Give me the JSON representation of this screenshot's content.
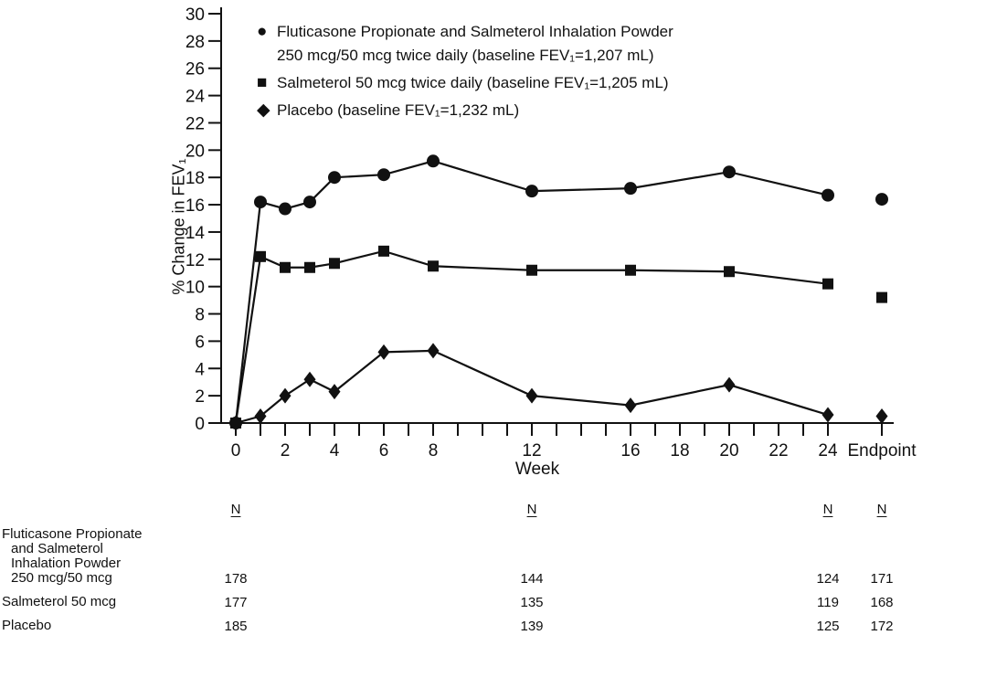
{
  "chart_data": {
    "type": "line",
    "title": "",
    "xlabel": "Week",
    "ylabel": "% Change in FEV₁",
    "ylim": [
      0,
      30
    ],
    "y_ticks": [
      0,
      2,
      4,
      6,
      8,
      10,
      12,
      14,
      16,
      18,
      20,
      22,
      24,
      26,
      28,
      30
    ],
    "x_minor_ticks": [
      0,
      1,
      2,
      3,
      4,
      5,
      6,
      7,
      8,
      9,
      10,
      11,
      12,
      13,
      14,
      15,
      16,
      17,
      18,
      19,
      20,
      21,
      22,
      23,
      24
    ],
    "x_ticks_labeled": [
      0,
      2,
      4,
      6,
      8,
      12,
      16,
      18,
      20,
      22,
      24
    ],
    "endpoint_label": "Endpoint",
    "grid": false,
    "legend_position": "top-left",
    "x": [
      0,
      1,
      2,
      3,
      4,
      6,
      8,
      12,
      16,
      20,
      24
    ],
    "series": [
      {
        "id": "fluticasone-salmeterol",
        "name": "Fluticasone Propionate and Salmeterol Inhalation Powder 250 mcg/50 mcg twice daily",
        "baseline_fev1": "1,207 mL",
        "marker": "circle",
        "values": [
          0,
          16.2,
          15.7,
          16.2,
          18.0,
          18.2,
          19.2,
          17.0,
          17.2,
          18.4,
          16.7
        ],
        "endpoint": 16.4
      },
      {
        "id": "salmeterol",
        "name": "Salmeterol 50 mcg twice daily",
        "baseline_fev1": "1,205 mL",
        "marker": "square",
        "values": [
          0,
          12.2,
          11.4,
          11.4,
          11.7,
          12.6,
          11.5,
          11.2,
          11.2,
          11.1,
          10.2
        ],
        "endpoint": 9.2
      },
      {
        "id": "placebo",
        "name": "Placebo",
        "baseline_fev1": "1,232 mL",
        "marker": "diamond",
        "values": [
          0,
          0.5,
          2.0,
          3.2,
          2.3,
          5.2,
          5.3,
          2.0,
          1.3,
          2.8,
          0.6
        ],
        "endpoint": 0.5
      }
    ]
  },
  "legend": {
    "entries": [
      {
        "marker_glyph": "●",
        "lines": [
          "Fluticasone Propionate and Salmeterol Inhalation Powder",
          "250 mcg/50 mcg twice daily (baseline FEV₁=1,207 mL)"
        ]
      },
      {
        "marker_glyph": "■",
        "lines": [
          "Salmeterol 50 mcg twice daily (baseline FEV₁=1,205 mL)"
        ]
      },
      {
        "marker_glyph": "◆",
        "lines": [
          "Placebo (baseline FEV₁=1,232 mL)"
        ]
      }
    ]
  },
  "n_table": {
    "header_label": "N",
    "rows": [
      {
        "label_lines": [
          "Fluticasone Propionate",
          "and Salmeterol",
          "Inhalation Powder",
          "250 mcg/50 mcg"
        ],
        "values": [
          "178",
          "144",
          "124",
          "171"
        ]
      },
      {
        "label_lines": [
          "Salmeterol 50 mcg"
        ],
        "values": [
          "177",
          "135",
          "119",
          "168"
        ]
      },
      {
        "label_lines": [
          "Placebo"
        ],
        "values": [
          "185",
          "139",
          "125",
          "172"
        ]
      }
    ]
  }
}
